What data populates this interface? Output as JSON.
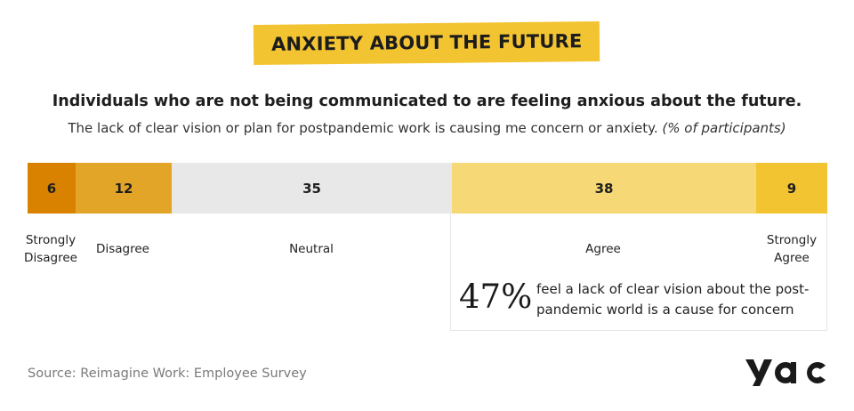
{
  "title": "ANXIETY ABOUT THE FUTURE",
  "headline": "Individuals who are not being communicated to are feeling anxious about the future.",
  "subline_main": "The lack of clear vision or plan for postpandemic work is causing me concern or anxiety.",
  "subline_note": "(% of participants)",
  "chart_data": {
    "type": "bar",
    "orientation": "horizontal-stacked",
    "unit": "% of participants",
    "categories": [
      "Strongly Disagree",
      "Disagree",
      "Neutral",
      "Agree",
      "Strongly Agree"
    ],
    "values": [
      6,
      12,
      35,
      38,
      9
    ],
    "colors": [
      "#d98200",
      "#e3a528",
      "#e8e8e8",
      "#f6d877",
      "#f3c431"
    ],
    "value_labels": [
      "6",
      "12",
      "35",
      "38",
      "9"
    ]
  },
  "labels": {
    "strongly_disagree_1": "Strongly",
    "strongly_disagree_2": "Disagree",
    "disagree": "Disagree",
    "neutral": "Neutral",
    "agree": "Agree",
    "strongly_agree_1": "Strongly",
    "strongly_agree_2": "Agree"
  },
  "callout": {
    "percent": "47%",
    "text": "feel a lack of clear vision about the post-pandemic world is a cause for concern"
  },
  "source": "Source: Reimagine Work: Employee Survey",
  "logo_text": "yac"
}
